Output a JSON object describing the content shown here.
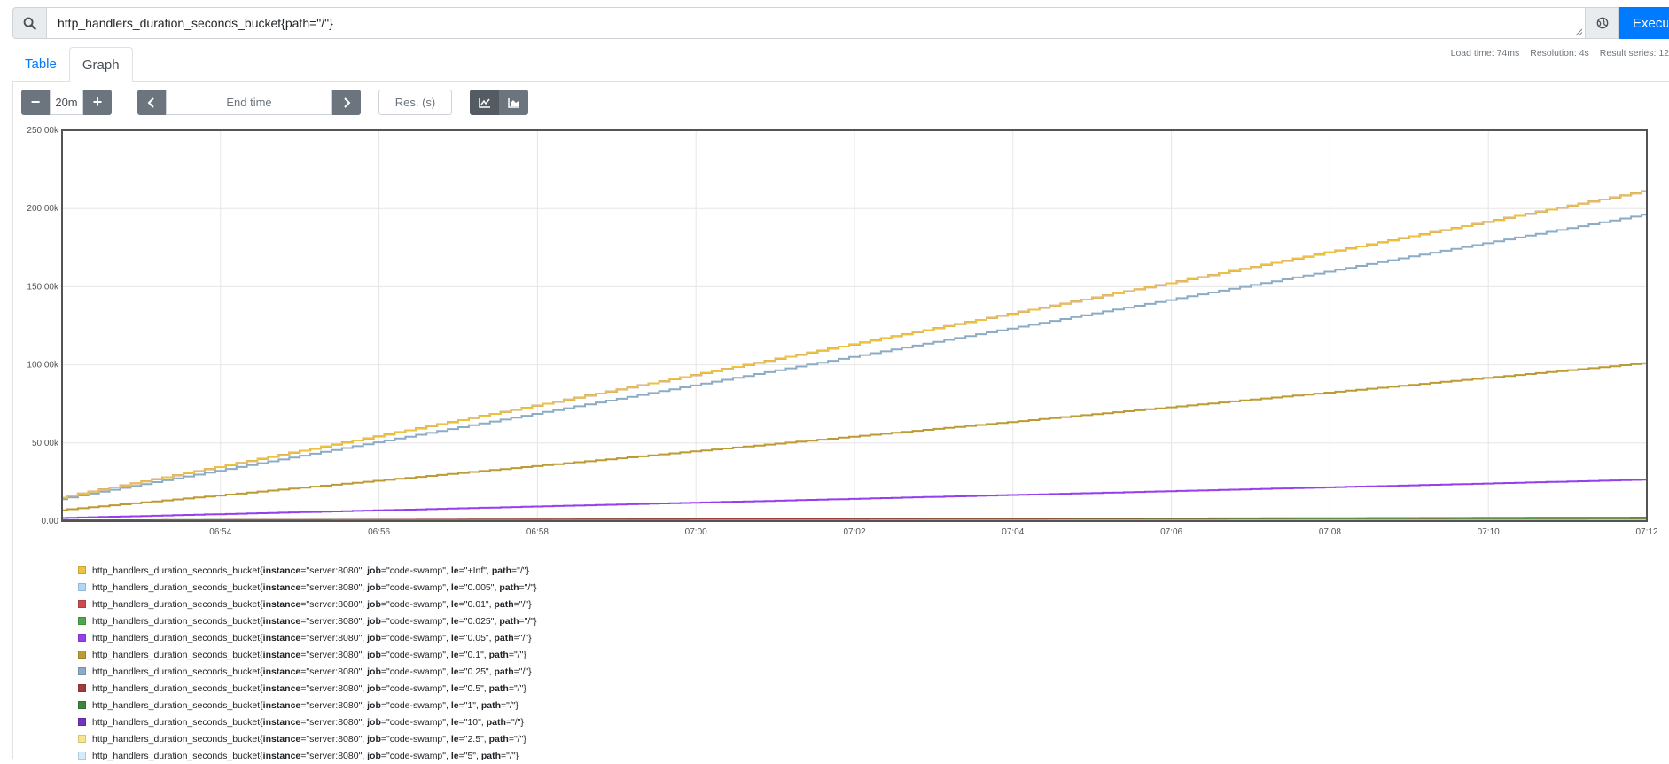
{
  "query": {
    "value": "http_handlers_duration_seconds_bucket{path=\"/\"}",
    "execute_label": "Execute",
    "icons": {
      "search": "search-icon",
      "metrics": "globe-icon"
    }
  },
  "tabs": [
    {
      "label": "Table",
      "active": false
    },
    {
      "label": "Graph",
      "active": true
    }
  ],
  "stats": {
    "load_time": "Load time: 74ms",
    "resolution": "Resolution: 4s",
    "result_series": "Result series: 12"
  },
  "controls": {
    "range_minus": "−",
    "range_value": "20m",
    "range_plus": "+",
    "end_time_placeholder": "End time",
    "resolution_placeholder": "Res. (s)",
    "icons": {
      "prev": "chevron-left-icon",
      "next": "chevron-right-icon",
      "lines": "line-chart-icon",
      "stacked": "area-chart-icon"
    }
  },
  "chart_data": {
    "type": "line",
    "y_ticks": [
      "0.00",
      "50.00k",
      "100.00k",
      "150.00k",
      "200.00k",
      "250.00k"
    ],
    "ylim": [
      0,
      250000
    ],
    "x_ticks": [
      "06:54",
      "06:56",
      "06:58",
      "07:00",
      "07:02",
      "07:04",
      "07:06",
      "07:08",
      "07:10",
      "07:12"
    ],
    "xlim_minutes": [
      52.0,
      72.0
    ],
    "x_tick_minutes": [
      54,
      56,
      58,
      60,
      62,
      64,
      66,
      68,
      70,
      72
    ],
    "grid": true,
    "series": [
      {
        "le": "+Inf",
        "color": "#edc240",
        "start": 15000,
        "end": 211000
      },
      {
        "le": "0.005",
        "color": "#afd8f8",
        "start": 0,
        "end": 500
      },
      {
        "le": "0.01",
        "color": "#cb4b4b",
        "start": 0,
        "end": 700
      },
      {
        "le": "0.025",
        "color": "#4da74d",
        "start": 0,
        "end": 1200
      },
      {
        "le": "0.05",
        "color": "#9440ed",
        "start": 2000,
        "end": 26500
      },
      {
        "le": "0.1",
        "color": "#bd9b33",
        "start": 7000,
        "end": 101000
      },
      {
        "le": "0.25",
        "color": "#8cacc6",
        "start": 14000,
        "end": 196000
      },
      {
        "le": "0.5",
        "color": "#a23c3c",
        "start": 500,
        "end": 2000
      },
      {
        "le": "1",
        "color": "#3d853d",
        "start": 500,
        "end": 2200
      },
      {
        "le": "10",
        "color": "#7633bd",
        "start": 15000,
        "end": 211000
      },
      {
        "le": "2.5",
        "color": "#f8e68e",
        "start": 15000,
        "end": 211000
      },
      {
        "le": "5",
        "color": "#d4ecfb",
        "start": 15000,
        "end": 211000
      }
    ]
  },
  "legend": {
    "metric": "http_handlers_duration_seconds_bucket",
    "instance": "server:8080",
    "job": "code-swamp",
    "path": "/"
  }
}
